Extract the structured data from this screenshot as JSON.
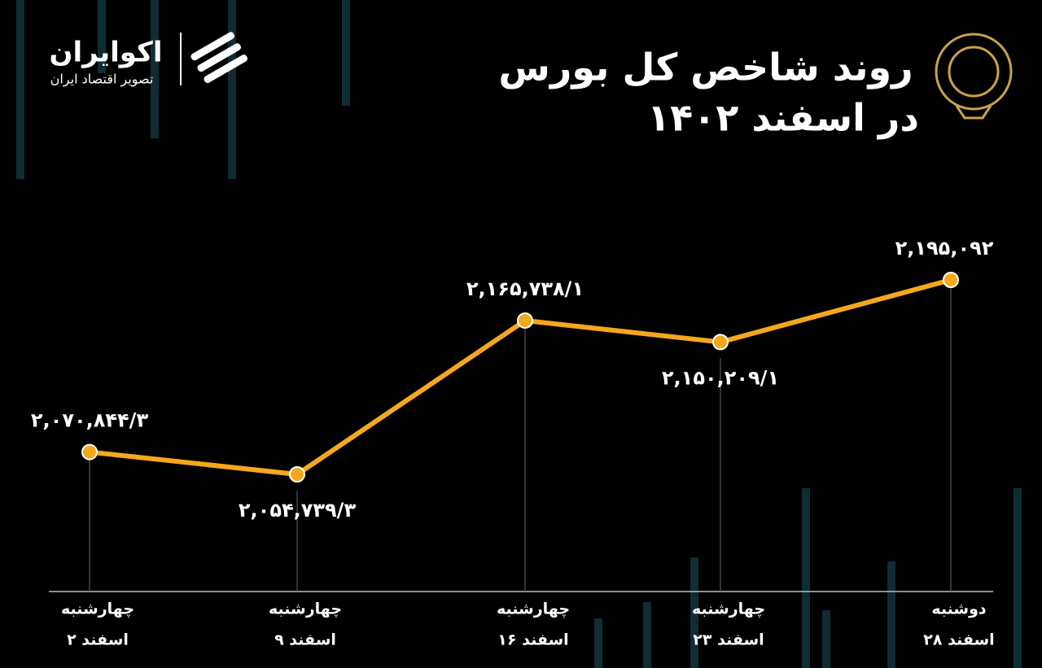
{
  "brand": {
    "name": "اکوایران",
    "tagline": "تصویر اقتصاد ایران"
  },
  "chart_data": {
    "type": "line",
    "title": "روند شاخص کل بورس",
    "subtitle": "در اسفند ۱۴۰۲",
    "weekdays": [
      "چهارشنبه",
      "چهارشنبه",
      "چهارشنبه",
      "چهارشنبه",
      "دوشنبه"
    ],
    "categories": [
      "۲ اسفند",
      "۹ اسفند",
      "۱۶ اسفند",
      "۲۳ اسفند",
      "۲۸ اسفند"
    ],
    "values": [
      2070844.3,
      2054739.3,
      2165738.1,
      2150209.1,
      2195092
    ],
    "value_labels": [
      "۲,۰۷۰,۸۴۴/۳",
      "۲,۰۵۴,۷۳۹/۳",
      "۲,۱۶۵,۷۳۸/۱",
      "۲,۱۵۰,۲۰۹/۱",
      "۲,۱۹۵,۰۹۲"
    ],
    "color": "#f5a81c"
  }
}
